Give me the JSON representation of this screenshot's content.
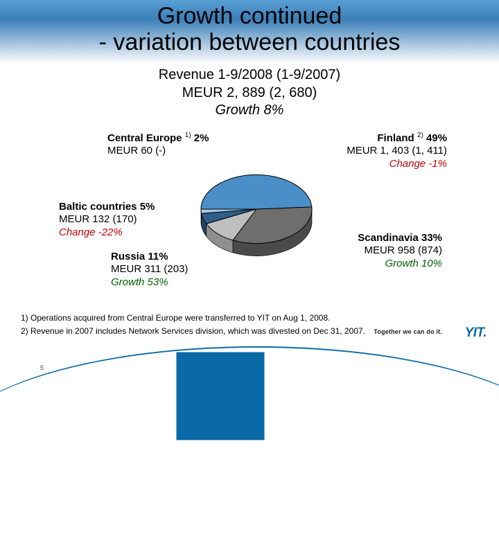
{
  "title_line1": "Growth continued",
  "title_line2": "- variation between countries",
  "subtitle_line1": "Revenue 1-9/2008 (1-9/2007)",
  "subtitle_line2": "MEUR 2, 889 (2, 680)",
  "subtitle_growth": "Growth 8%",
  "footnote1": "1) Operations acquired from Central Europe were transferred to YIT on Aug 1, 2008.",
  "footnote2": "2) Revenue in 2007 includes Network Services division, which was divested on Dec 31, 2007.",
  "tagline": "Together we can do it.",
  "logo": "YIT",
  "page_number": "5",
  "pie": {
    "type": "pie",
    "background_color": "#ffffff",
    "tilt": 0.62,
    "depth": 18,
    "stroke": "#000000",
    "stroke_width": 1,
    "slices": [
      {
        "name": "Finland",
        "value": 49,
        "color": "#4a8fc8",
        "side_color": "#2f6a9a"
      },
      {
        "name": "Scandinavia",
        "value": 33,
        "color": "#6e6e6e",
        "side_color": "#4a4a4a"
      },
      {
        "name": "Russia",
        "value": 11,
        "color": "#bfbfbf",
        "side_color": "#8f8f8f"
      },
      {
        "name": "Baltic countries",
        "value": 5,
        "color": "#2d5f8a",
        "side_color": "#1e4666"
      },
      {
        "name": "Central Europe",
        "value": 2,
        "color": "#a8c8e0",
        "side_color": "#7aa4c4"
      }
    ]
  },
  "labels": {
    "central_europe": {
      "title_pre": "Central Europe ",
      "sup": "1)",
      "title_post": " 2%",
      "meur": "MEUR 60 (-)",
      "growth": ""
    },
    "finland": {
      "title_pre": "Finland ",
      "sup": "2)",
      "title_post": " 49%",
      "meur": "MEUR 1, 403 (1, 411)",
      "growth": "Change -1%",
      "growth_color": "#c00000"
    },
    "baltic": {
      "title": "Baltic countries 5%",
      "meur": "MEUR 132 (170)",
      "growth": "Change -22%",
      "growth_color": "#c00000"
    },
    "russia": {
      "title": "Russia 11%",
      "meur": "MEUR 311 (203)",
      "growth": "Growth 53%",
      "growth_color": "#006000"
    },
    "scandinavia": {
      "title": "Scandinavia 33%",
      "meur": "MEUR 958 (874)",
      "growth": "Growth 10%",
      "growth_color": "#006000"
    }
  }
}
